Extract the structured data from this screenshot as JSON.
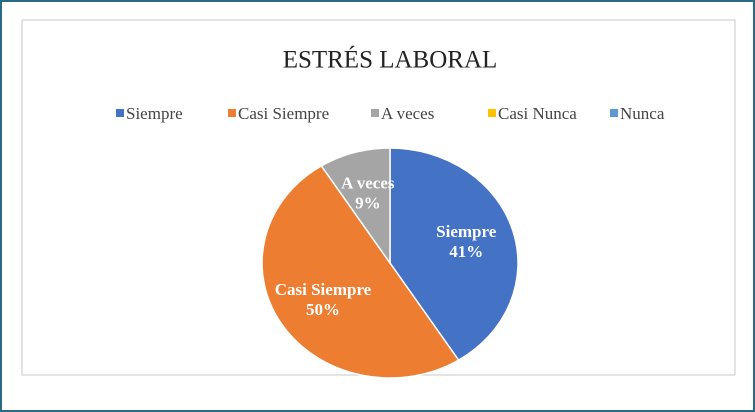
{
  "chart_data": {
    "type": "pie",
    "title": "ESTRÉS LABORAL",
    "categories": [
      "Siempre",
      "Casi Siempre",
      "A veces",
      "Casi Nunca",
      "Nunca"
    ],
    "values": [
      41,
      50,
      9,
      0,
      0
    ],
    "value_labels": [
      "41%",
      "50%",
      "9%",
      null,
      null
    ],
    "colors": [
      "#4472c4",
      "#ed7d31",
      "#a5a5a5",
      "#ffc000",
      "#5b9bd5"
    ],
    "legend": "top"
  }
}
